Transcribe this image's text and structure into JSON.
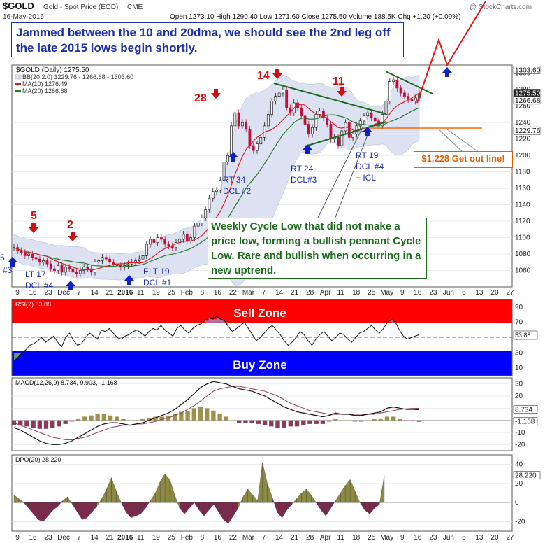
{
  "header": {
    "symbol": "$GOLD",
    "name": "Gold - Spot Price (EOD)",
    "exchange": "CME",
    "watermark": "@ StockCharts.com",
    "date": "16-May-2016",
    "ohlc": "Open 1273.10  High 1290.40  Low 1271.60  Close 1275.50  Volume 188.5K  Chg +1.20 (+0.09%)"
  },
  "headline": "Jammed between the 10 and 20dma, we should see the 2nd leg off the late 2015 lows begin shortly.",
  "legend": {
    "title": "$GOLD (Daily) 1275.50",
    "bb": "BB(20,2.0) 1229.76 - 1266.68 - 1303.60",
    "ma10": "MA(10) 1276.49",
    "ma20": "MA(20) 1266.68"
  },
  "callouts": {
    "weekly": "Weekly Cycle Low that did not make a price low, forming a bullish pennant Cycle Low.  Rare and bullish when occurring in a new uptrend.",
    "getout": "$1,228 Get out line!"
  },
  "panels": {
    "rsi_label": "RSI(7) 53.88",
    "sell_zone": "Sell Zone",
    "buy_zone": "Buy Zone",
    "macd_label": "MACD(12,26,9) 8.734, 9.903, -1.168",
    "dpo_label": "DPO(20) 28.220"
  },
  "colors": {
    "price_up": "#1a1a1a",
    "price_down": "#c0103a",
    "ma10": "#d62020",
    "ma20": "#2a7a2a",
    "band_fill": "#dde2f2",
    "sell_zone": "#ff0000",
    "buy_zone": "#0000ff",
    "macd_hist_up": "#a0904a",
    "macd_hist_down": "#8b3a5a",
    "dpo_pos": "#8c8a40",
    "dpo_neg": "#7a2a4a",
    "callout_border": "#1a6a1a",
    "getout_line": "#ff6600"
  },
  "chart_data": [
    {
      "type": "candlestick",
      "title": "$GOLD (Daily) 1275.50",
      "ylim": [
        1040,
        1310
      ],
      "y_ticks": [
        1060,
        1080,
        1100,
        1120,
        1140,
        1160,
        1180,
        1200,
        1220,
        1240,
        1260,
        1280,
        1300
      ],
      "x_ticks": [
        "9",
        "16",
        "23",
        "Dec",
        "7",
        "14",
        "21",
        "2016",
        "11",
        "19",
        "25",
        "Feb",
        "8",
        "16",
        "22",
        "Mar",
        "7",
        "14",
        "21",
        "28",
        "Apr",
        "11",
        "18",
        "25",
        "May",
        "9",
        "16",
        "23",
        "Jun",
        "6",
        "13",
        "20",
        "27"
      ],
      "tick_labels_right": [
        "1303.60",
        "1275.50",
        "1266.68",
        "1229.76"
      ],
      "close_by_trading_day": [
        1088,
        1084,
        1082,
        1078,
        1080,
        1076,
        1074,
        1070,
        1072,
        1068,
        1062,
        1060,
        1066,
        1058,
        1064,
        1062,
        1058,
        1056,
        1060,
        1064,
        1062,
        1058,
        1070,
        1072,
        1076,
        1074,
        1070,
        1068,
        1066,
        1064,
        1066,
        1068,
        1070,
        1072,
        1074,
        1078,
        1092,
        1098,
        1094,
        1100,
        1098,
        1092,
        1090,
        1088,
        1094,
        1098,
        1104,
        1096,
        1100,
        1114,
        1118,
        1124,
        1134,
        1148,
        1156,
        1158,
        1170,
        1192,
        1200,
        1236,
        1252,
        1236,
        1240,
        1232,
        1212,
        1206,
        1214,
        1222,
        1236,
        1250,
        1266,
        1272,
        1276,
        1280,
        1258,
        1252,
        1264,
        1258,
        1248,
        1238,
        1226,
        1234,
        1250,
        1254,
        1246,
        1238,
        1220,
        1222,
        1212,
        1230,
        1240,
        1222,
        1226,
        1236,
        1242,
        1248,
        1252,
        1246,
        1242,
        1236,
        1250,
        1266,
        1290,
        1292,
        1282,
        1276,
        1272,
        1268,
        1266,
        1270,
        1275.5
      ],
      "annotations": [
        "5",
        "2",
        "28",
        "14",
        "11",
        "LT 17 DCL #4",
        "ELT 19 DCL #1",
        "RT 34 DCL #2",
        "RT 24 DCL#3",
        "RT 19 DCL #4 + ICL",
        "$1,228 Get out line!"
      ],
      "get_out_level": 1228
    },
    {
      "type": "line",
      "title": "RSI(7) 53.88",
      "ylim": [
        0,
        100
      ],
      "y_ticks": [
        10,
        30,
        50,
        70,
        90
      ],
      "values": [
        20,
        24,
        30,
        34,
        40,
        42,
        46,
        50,
        44,
        48,
        52,
        44,
        38,
        50,
        56,
        46,
        40,
        42,
        50,
        56,
        52,
        48,
        60,
        58,
        62,
        56,
        50,
        48,
        52,
        54,
        58,
        60,
        56,
        52,
        58,
        62,
        60,
        66,
        60,
        56,
        52,
        62,
        66,
        60,
        56,
        62,
        66,
        68,
        72,
        76,
        74,
        78,
        74,
        72,
        64,
        58,
        62,
        66,
        70,
        62,
        54,
        46,
        50,
        56,
        62,
        66,
        60,
        54,
        46,
        40,
        44,
        50,
        58,
        54,
        46,
        40,
        48,
        54,
        58,
        52,
        46,
        50,
        56,
        54,
        48,
        44,
        50,
        56,
        58,
        62,
        66,
        60,
        56,
        62,
        70,
        74,
        70,
        60,
        52,
        48,
        50,
        52,
        53.88
      ]
    },
    {
      "type": "line",
      "title": "MACD(12,26,9) 8.734, 9.903, -1.168",
      "ylim": [
        -25,
        35
      ],
      "y_ticks": [
        -20,
        -10,
        0,
        10,
        20,
        30
      ],
      "tick_labels_right": [
        "8.734",
        "-1.168"
      ],
      "series": [
        {
          "name": "MACD",
          "values": [
            -6,
            -8,
            -11,
            -14,
            -17,
            -19,
            -20,
            -20,
            -19,
            -17,
            -14,
            -11,
            -8,
            -5,
            -3,
            -2,
            -2,
            -3,
            -4,
            -3,
            -2,
            0,
            2,
            4,
            6,
            9,
            13,
            17,
            22,
            27,
            30,
            32,
            31,
            30,
            28,
            26,
            25,
            24,
            22,
            20,
            17,
            14,
            11,
            9,
            7,
            6,
            5,
            4,
            3,
            4,
            6,
            5,
            5,
            4,
            4,
            5,
            6,
            7,
            10,
            11,
            10,
            9,
            9,
            8.734
          ]
        },
        {
          "name": "Signal",
          "values": [
            -2,
            -4,
            -6,
            -8,
            -10,
            -12,
            -14,
            -15,
            -16,
            -16,
            -15,
            -14,
            -12,
            -10,
            -8,
            -6,
            -5,
            -4,
            -4,
            -3,
            -3,
            -2,
            -1,
            1,
            2,
            4,
            6,
            9,
            12,
            16,
            20,
            24,
            26,
            27,
            28,
            28,
            27,
            26,
            25,
            24,
            22,
            20,
            17,
            14,
            12,
            10,
            8,
            7,
            6,
            5,
            5,
            5,
            5,
            5,
            5,
            5,
            5,
            6,
            7,
            8,
            9,
            9.5,
            9.8,
            9.903
          ]
        }
      ]
    },
    {
      "type": "area",
      "title": "DPO(20) 28.220",
      "ylim": [
        -30,
        50
      ],
      "y_ticks": [
        -20,
        0,
        20,
        40
      ],
      "tick_labels_right": [
        "28.220"
      ],
      "values": [
        8,
        4,
        0,
        -6,
        -12,
        -18,
        -20,
        -14,
        -8,
        -4,
        2,
        6,
        -2,
        -10,
        -18,
        -16,
        -10,
        -4,
        4,
        14,
        26,
        12,
        0,
        -10,
        -16,
        -14,
        -12,
        -6,
        2,
        10,
        22,
        30,
        24,
        8,
        -6,
        -12,
        -6,
        0,
        -8,
        -14,
        -8,
        -2,
        -10,
        -18,
        -22,
        -14,
        -6,
        6,
        14,
        8,
        2,
        42,
        20,
        6,
        -10,
        -16,
        -8,
        -2,
        4,
        10,
        14,
        8,
        0,
        -8,
        -14,
        -6,
        2,
        10,
        18,
        24,
        12,
        0,
        -8,
        -12,
        -6,
        -2,
        28.22
      ]
    }
  ]
}
